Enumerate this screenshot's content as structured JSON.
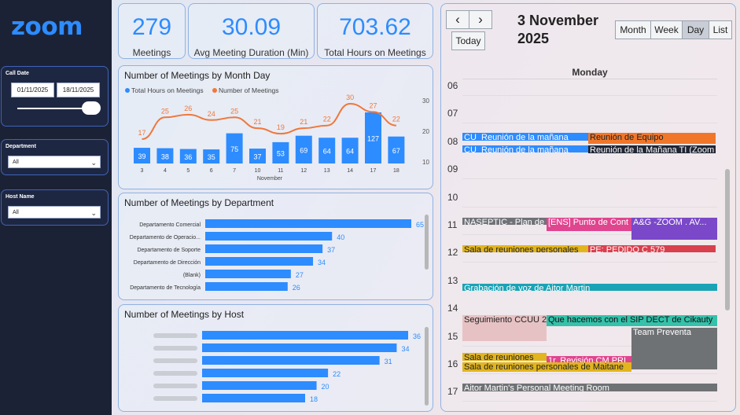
{
  "app": {
    "logo_text": "zoom"
  },
  "filters": {
    "call_date": {
      "label": "Call Date",
      "start": "01/11/2025",
      "end": "18/11/2025"
    },
    "department": {
      "label": "Department",
      "value": "All"
    },
    "host_name": {
      "label": "Host Name",
      "value": "All"
    }
  },
  "kpis": [
    {
      "value": "279",
      "label": "Meetings"
    },
    {
      "value": "30.09",
      "label": "Avg Meeting Duration (Min)"
    },
    {
      "value": "703.62",
      "label": "Total Hours on Meetings"
    }
  ],
  "colors": {
    "blue": "#2d8cff",
    "orange": "#f0773a",
    "panel_border": "#8fb2e3"
  },
  "chart_data": [
    {
      "type": "bar",
      "title": "Number of Meetings by Month Day",
      "legend": [
        "Total Hours on Meetings",
        "Number of Meetings"
      ],
      "xlabel": "November",
      "categories": [
        "3",
        "4",
        "5",
        "6",
        "7",
        "10",
        "11",
        "12",
        "13",
        "14",
        "17",
        "18"
      ],
      "series": [
        {
          "name": "Total Hours on Meetings",
          "type": "bar",
          "values": [
            39,
            38,
            36,
            35,
            75,
            37,
            53,
            69,
            64,
            64,
            127,
            67
          ]
        },
        {
          "name": "Number of Meetings",
          "type": "line",
          "values": [
            17,
            25,
            26,
            24,
            25,
            21,
            19,
            21,
            22,
            30,
            27,
            22
          ]
        }
      ],
      "y2_ticks": [
        "30",
        "20",
        "10"
      ]
    },
    {
      "type": "bar",
      "orientation": "horizontal",
      "title": "Number of Meetings by Department",
      "categories": [
        "Departamento Comercial",
        "Departamento de Operacio...",
        "Departamento de Soporte",
        "Departamento de Dirección",
        "(Blank)",
        "Departamento de Tecnología"
      ],
      "values": [
        65,
        40,
        37,
        34,
        27,
        26
      ]
    },
    {
      "type": "bar",
      "orientation": "horizontal",
      "title": "Number of Meetings by Host",
      "categories": [
        "",
        "",
        "",
        "",
        "",
        ""
      ],
      "values": [
        36,
        34,
        31,
        22,
        20,
        18
      ]
    }
  ],
  "calendar": {
    "date_line1": "3 November",
    "date_line2": "2025",
    "prev": "‹",
    "next": "›",
    "today": "Today",
    "views": [
      "Month",
      "Week",
      "Day",
      "List"
    ],
    "active_view": "Day",
    "day_header": "Monday",
    "hours": [
      "06",
      "07",
      "08",
      "09",
      "10",
      "11",
      "12",
      "13",
      "14",
      "15",
      "16",
      "17"
    ],
    "events": [
      {
        "title": "CU_Reunión de la mañana",
        "color": "#2d8cff"
      },
      {
        "title": "Reunión de Equipo",
        "color": "#f0772a"
      },
      {
        "title": "CU_Reunión de la mañana",
        "color": "#2d8cff"
      },
      {
        "title": "Reunión de la Mañana TI (Zoom",
        "color": "#1f2533"
      },
      {
        "title": "NASEPTIC - Plan de",
        "color": "#6f7378"
      },
      {
        "title": "[ENS] Punto de Cont",
        "color": "#e0458f"
      },
      {
        "title": "A&G -ZOOM . AV...",
        "color": "#7a48c9"
      },
      {
        "title": "Sala de reuniones personales",
        "color": "#e2b51e"
      },
      {
        "title": "PE: PEDIDO C 579",
        "color": "#d9404d"
      },
      {
        "title": "Grabación de voz de Aitor Martin",
        "color": "#1aa3b5"
      },
      {
        "title": "Seguimiento CCUU 2",
        "color": "#e7c2c4"
      },
      {
        "title": "Que hacemos con el SIP DECT de Cikauty",
        "color": "#35c1aa"
      },
      {
        "title": "Team Preventa",
        "color": "#6f7275"
      },
      {
        "title": "Sala de reuniones",
        "color": "#e2b51e"
      },
      {
        "title": "1r. Revisión CM PRI",
        "color": "#e0458f"
      },
      {
        "title": "Sala de reuniones personales de Maitane",
        "color": "#e2b51e"
      },
      {
        "title": "Aitor Martin's Personal Meeting Room",
        "color": "#6f7275"
      }
    ]
  }
}
